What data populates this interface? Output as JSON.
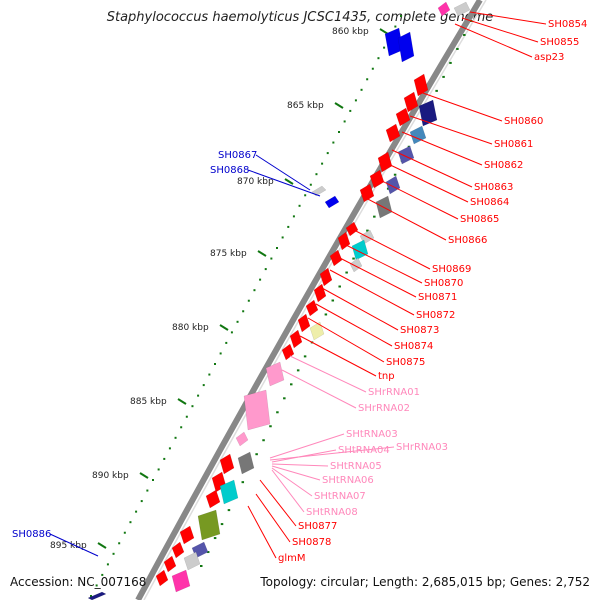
{
  "title": "Staphylococcus haemolyticus JCSC1435, complete genome",
  "footer": {
    "accession": "Accession: NC_007168",
    "topology": "Topology: circular; Length: 2,685,015 bp; Genes: 2,752"
  },
  "scale_labels": [
    "860 kbp",
    "865 kbp",
    "870 kbp",
    "875 kbp",
    "880 kbp",
    "885 kbp",
    "890 kbp",
    "895 kbp"
  ],
  "gene_labels_right": [
    {
      "text": "SH0854",
      "color": "#ff0000"
    },
    {
      "text": "SH0855",
      "color": "#ff0000"
    },
    {
      "text": "asp23",
      "color": "#ff0000"
    },
    {
      "text": "SH0860",
      "color": "#ff0000"
    },
    {
      "text": "SH0861",
      "color": "#ff0000"
    },
    {
      "text": "SH0862",
      "color": "#ff0000"
    },
    {
      "text": "SH0863",
      "color": "#ff0000"
    },
    {
      "text": "SH0864",
      "color": "#ff0000"
    },
    {
      "text": "SH0865",
      "color": "#ff0000"
    },
    {
      "text": "SH0866",
      "color": "#ff0000"
    },
    {
      "text": "SH0869",
      "color": "#ff0000"
    },
    {
      "text": "SH0870",
      "color": "#ff0000"
    },
    {
      "text": "SH0871",
      "color": "#ff0000"
    },
    {
      "text": "SH0872",
      "color": "#ff0000"
    },
    {
      "text": "SH0873",
      "color": "#ff0000"
    },
    {
      "text": "SH0874",
      "color": "#ff0000"
    },
    {
      "text": "SH0875",
      "color": "#ff0000"
    },
    {
      "text": "tnp",
      "color": "#ff0000"
    },
    {
      "text": "SHrRNA01",
      "color": "#ff88bb"
    },
    {
      "text": "SHrRNA02",
      "color": "#ff88bb"
    },
    {
      "text": "SHtRNA03",
      "color": "#ff88bb"
    },
    {
      "text": "SHrRNA03",
      "color": "#ff88bb"
    },
    {
      "text": "SHtRNA04",
      "color": "#ff88bb"
    },
    {
      "text": "SHtRNA05",
      "color": "#ff88bb"
    },
    {
      "text": "SHtRNA06",
      "color": "#ff88bb"
    },
    {
      "text": "SHtRNA07",
      "color": "#ff88bb"
    },
    {
      "text": "SHtRNA08",
      "color": "#ff88bb"
    },
    {
      "text": "SH0877",
      "color": "#ff0000"
    },
    {
      "text": "SH0878",
      "color": "#ff0000"
    },
    {
      "text": "glmM",
      "color": "#ff0000"
    }
  ],
  "gene_labels_left": [
    {
      "text": "SH0867",
      "color": "#0000cc"
    },
    {
      "text": "SH0868",
      "color": "#0000cc"
    },
    {
      "text": "SH0886",
      "color": "#0000cc"
    }
  ],
  "colors": {
    "red": "#ff0000",
    "blue": "#0000ee",
    "navy": "#1a1a80",
    "slate": "#5555aa",
    "teal": "#00cccc",
    "olive": "#779922",
    "grey": "#777777",
    "light_grey": "#cccccc",
    "pink": "#ff99cc",
    "magenta": "#ff33aa",
    "tick_green": "#117711",
    "backbone": "#888888"
  }
}
